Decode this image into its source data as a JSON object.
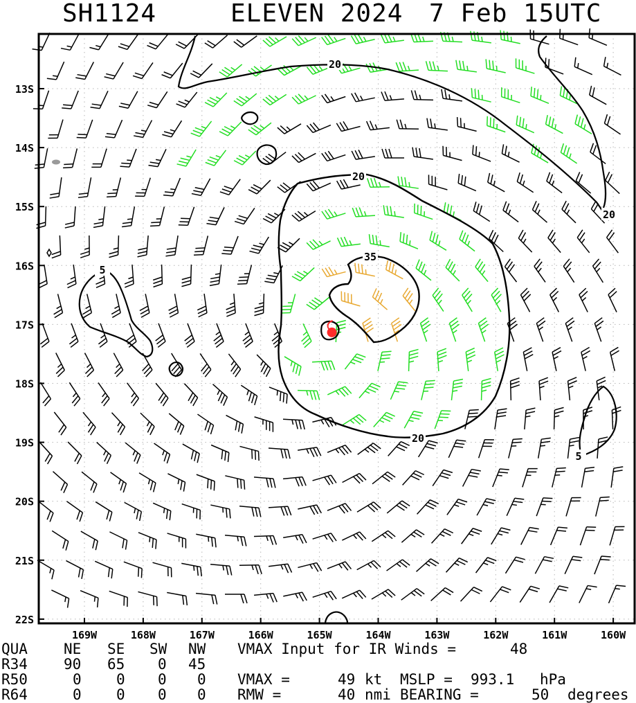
{
  "title": {
    "storm_id": "SH1124",
    "storm_name": "ELEVEN 2024",
    "date_time": "7 Feb 15UTC"
  },
  "map": {
    "lat_labels": [
      "13S",
      "14S",
      "15S",
      "16S",
      "17S",
      "18S",
      "19S",
      "20S",
      "21S",
      "22S"
    ],
    "lon_labels": [
      "169W",
      "168W",
      "167W",
      "166W",
      "165W",
      "164W",
      "163W",
      "162W",
      "161W",
      "160W"
    ],
    "contour_labels": [
      "20",
      "20",
      "20",
      "20",
      "35",
      "5",
      "5"
    ],
    "center": {
      "lon": -164.8,
      "lat": -17.1
    },
    "colors": {
      "below_34kt": "#000000",
      "34_to_49kt": "#22dd22",
      "35kt_plus": "#e8a830",
      "center": "#ff2a2a",
      "land": "#9a9a9a"
    }
  },
  "table": {
    "header": [
      "QUA",
      "NE",
      "SE",
      "SW",
      "NW"
    ],
    "rows": [
      {
        "label": "R34",
        "values": [
          "90",
          "65",
          "0",
          "45"
        ]
      },
      {
        "label": "R50",
        "values": [
          "0",
          "0",
          "0",
          "0"
        ]
      },
      {
        "label": "R64",
        "values": [
          "0",
          "0",
          "0",
          "0"
        ]
      }
    ]
  },
  "info": {
    "vmax_input_label": "VMAX Input for IR Winds =",
    "vmax_input_value": "48",
    "vmax_label": "VMAX =",
    "vmax_value": "49",
    "vmax_unit": "kt",
    "mslp_label": "MSLP =",
    "mslp_value": "993.1",
    "mslp_unit": "hPa",
    "rmw_label": "RMW =",
    "rmw_value": "40",
    "rmw_unit": "nmi",
    "bearing_label": "BEARING =",
    "bearing_value": "50",
    "bearing_unit": "degrees"
  }
}
